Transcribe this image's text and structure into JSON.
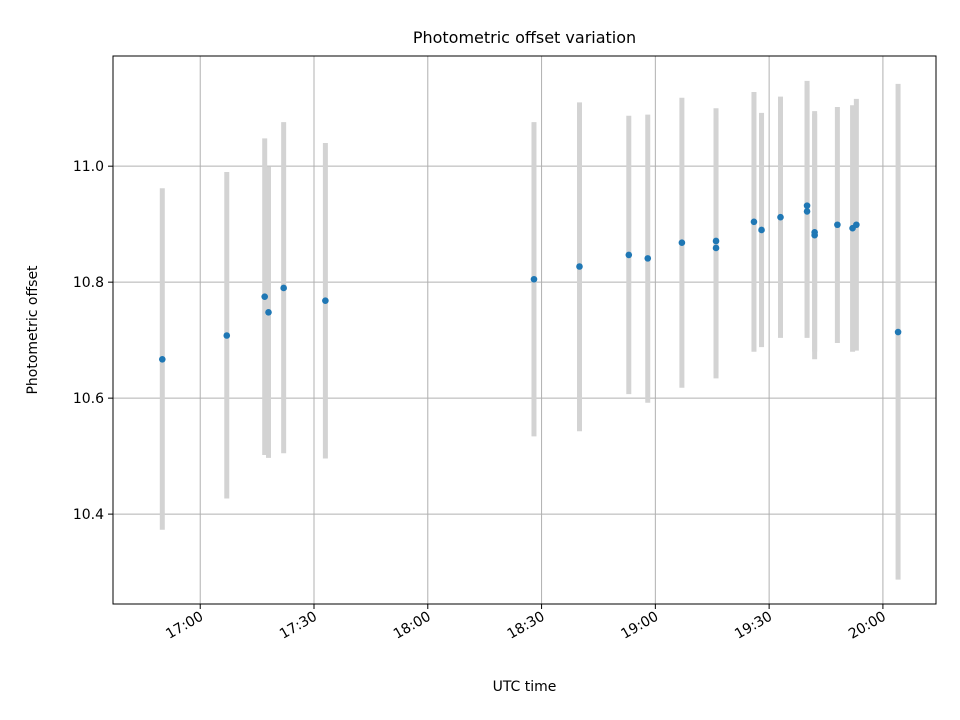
{
  "chart_data": {
    "type": "scatter",
    "title": "Photometric offset variation",
    "xlabel": "UTC time",
    "ylabel": "Photometric offset",
    "x_range_hours": [
      16.6167,
      20.2333
    ],
    "ylim": [
      10.245,
      11.19
    ],
    "grid": true,
    "colors": {
      "point": "#1f77b4",
      "errorbar": "#d3d3d3",
      "grid": "#b0b0b0",
      "axis": "#000000"
    },
    "y_ticks": [
      10.4,
      10.6,
      10.8,
      11.0
    ],
    "y_tick_labels": [
      "10.4",
      "10.6",
      "10.8",
      "11.0"
    ],
    "x_ticks_hours": [
      17.0,
      17.5,
      18.0,
      18.5,
      19.0,
      19.5,
      20.0
    ],
    "x_tick_labels": [
      "17:00",
      "17:30",
      "18:00",
      "18:30",
      "19:00",
      "19:30",
      "20:00"
    ],
    "points": [
      {
        "time": "16:50",
        "offset": 10.667,
        "err_low": 10.373,
        "err_high": 10.962
      },
      {
        "time": "17:07",
        "offset": 10.708,
        "err_low": 10.427,
        "err_high": 10.99
      },
      {
        "time": "17:17",
        "offset": 10.775,
        "err_low": 10.502,
        "err_high": 11.048
      },
      {
        "time": "17:18",
        "offset": 10.748,
        "err_low": 10.497,
        "err_high": 10.999
      },
      {
        "time": "17:22",
        "offset": 10.79,
        "err_low": 10.505,
        "err_high": 11.076
      },
      {
        "time": "17:33",
        "offset": 10.768,
        "err_low": 10.496,
        "err_high": 11.04
      },
      {
        "time": "18:28",
        "offset": 10.805,
        "err_low": 10.534,
        "err_high": 11.076
      },
      {
        "time": "18:40",
        "offset": 10.827,
        "err_low": 10.543,
        "err_high": 11.11
      },
      {
        "time": "18:53",
        "offset": 10.847,
        "err_low": 10.607,
        "err_high": 11.087
      },
      {
        "time": "18:58",
        "offset": 10.841,
        "err_low": 10.592,
        "err_high": 11.089
      },
      {
        "time": "19:07",
        "offset": 10.868,
        "err_low": 10.618,
        "err_high": 11.118
      },
      {
        "time": "19:16",
        "offset": 10.871,
        "err_low": 10.642,
        "err_high": 11.1
      },
      {
        "time": "19:16",
        "offset": 10.859,
        "err_low": 10.634,
        "err_high": 11.084
      },
      {
        "time": "19:26",
        "offset": 10.904,
        "err_low": 10.68,
        "err_high": 11.128
      },
      {
        "time": "19:28",
        "offset": 10.89,
        "err_low": 10.688,
        "err_high": 11.092
      },
      {
        "time": "19:33",
        "offset": 10.912,
        "err_low": 10.704,
        "err_high": 11.12
      },
      {
        "time": "19:40",
        "offset": 10.932,
        "err_low": 10.717,
        "err_high": 11.147
      },
      {
        "time": "19:40",
        "offset": 10.922,
        "err_low": 10.704,
        "err_high": 11.14
      },
      {
        "time": "19:42",
        "offset": 10.881,
        "err_low": 10.667,
        "err_high": 11.095
      },
      {
        "time": "19:42",
        "offset": 10.886,
        "err_low": 10.68,
        "err_high": 11.09
      },
      {
        "time": "19:48",
        "offset": 10.899,
        "err_low": 10.695,
        "err_high": 11.102
      },
      {
        "time": "19:52",
        "offset": 10.893,
        "err_low": 10.68,
        "err_high": 11.105
      },
      {
        "time": "19:53",
        "offset": 10.899,
        "err_low": 10.682,
        "err_high": 11.116
      },
      {
        "time": "20:04",
        "offset": 10.714,
        "err_low": 10.287,
        "err_high": 11.142
      }
    ]
  }
}
